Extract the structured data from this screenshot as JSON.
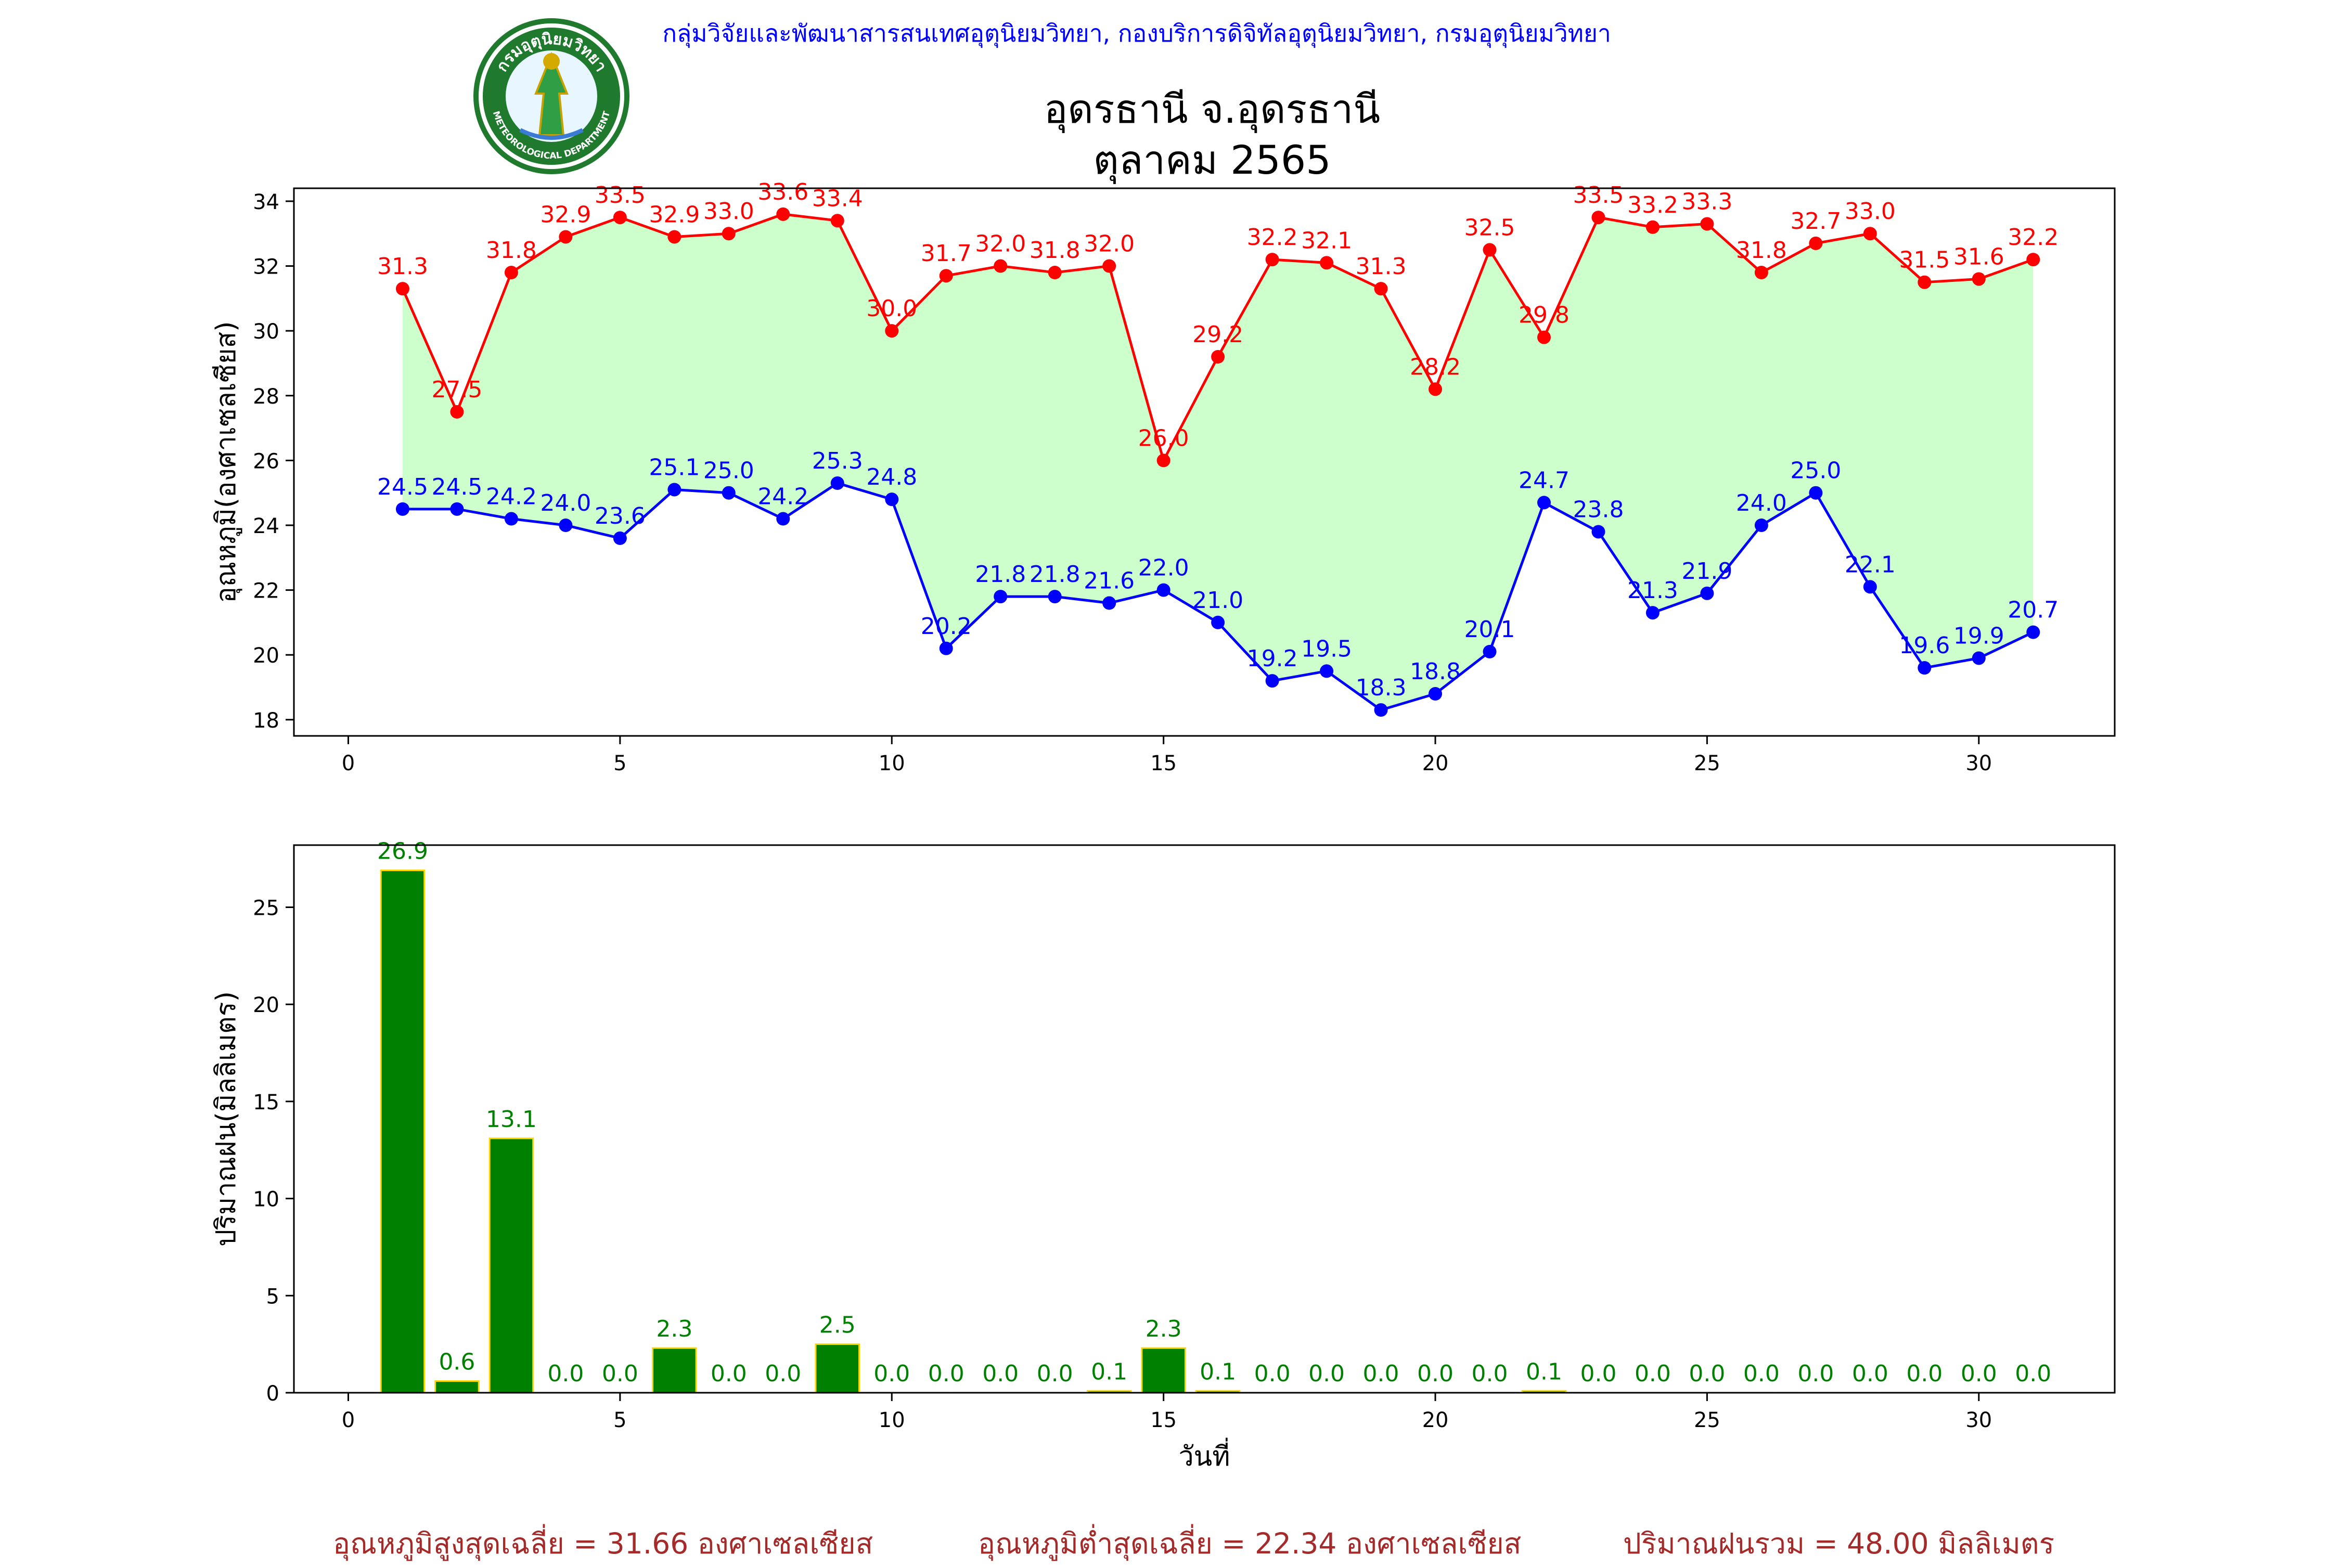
{
  "header": {
    "organization": "กลุ่มวิจัยและพัฒนาสารสนเทศอุตุนิยมวิทยา, กองบริการดิจิทัลอุตุนิยมวิทยา, กรมอุตุนิยมวิทยา",
    "title_line1": "อุดรธานี จ.อุดรธานี",
    "title_line2": "ตุลาคม 2565",
    "logo": {
      "text_top": "กรมอุตุนิยมวิทยา",
      "text_bottom": "METEOROLOGICAL DEPARTMENT",
      "icon": "meteorological-department-seal"
    }
  },
  "chart_data": [
    {
      "type": "line",
      "ylabel": "อุณหภูมิ(องศาเซลเซียส)",
      "xlabel": "",
      "xlim": [
        -1,
        32.5
      ],
      "ylim": [
        17.5,
        34.4
      ],
      "xticks": [
        0,
        5,
        10,
        15,
        20,
        25,
        30
      ],
      "yticks": [
        18,
        20,
        22,
        24,
        26,
        28,
        30,
        32,
        34
      ],
      "x": [
        1,
        2,
        3,
        4,
        5,
        6,
        7,
        8,
        9,
        10,
        11,
        12,
        13,
        14,
        15,
        16,
        17,
        18,
        19,
        20,
        21,
        22,
        23,
        24,
        25,
        26,
        27,
        28,
        29,
        30,
        31
      ],
      "fill_between": {
        "color": "#ccffcc",
        "between": [
          "max",
          "min"
        ]
      },
      "series": [
        {
          "key": "max",
          "color": "#ff0000",
          "values": [
            31.3,
            27.5,
            31.8,
            32.9,
            33.5,
            32.9,
            33.0,
            33.6,
            33.4,
            30.0,
            31.7,
            32.0,
            31.8,
            32.0,
            26.0,
            29.2,
            32.2,
            32.1,
            31.3,
            28.2,
            32.5,
            29.8,
            33.5,
            33.2,
            33.3,
            31.8,
            32.7,
            33.0,
            31.5,
            31.6,
            32.2
          ],
          "labels": [
            "31.3",
            "27.5",
            "31.8",
            "32.9",
            "33.5",
            "32.9",
            "33.0",
            "33.6",
            "33.4",
            "30.0",
            "31.7",
            "32.0",
            "31.8",
            "32.0",
            "26.0",
            "29.2",
            "32.2",
            "32.1",
            "31.3",
            "28.2",
            "32.5",
            "29.8",
            "33.5",
            "33.2",
            "33.3",
            "31.8",
            "32.7",
            "33.0",
            "31.5",
            "31.6",
            "32.2"
          ]
        },
        {
          "key": "min",
          "color": "#0000ff",
          "values": [
            24.5,
            24.5,
            24.2,
            24.0,
            23.6,
            25.1,
            25.0,
            24.2,
            25.3,
            24.8,
            20.2,
            21.8,
            21.8,
            21.6,
            22.0,
            21.0,
            19.2,
            19.5,
            18.3,
            18.8,
            20.1,
            24.7,
            23.8,
            21.3,
            21.9,
            24.0,
            25.0,
            22.1,
            19.6,
            19.9,
            20.7
          ],
          "labels": [
            "24.5",
            "24.5",
            "24.2",
            "24.0",
            "23.6",
            "25.1",
            "25.0",
            "24.2",
            "25.3",
            "24.8",
            "20.2",
            "21.8",
            "21.8",
            "21.6",
            "22.0",
            "21.0",
            "19.2",
            "19.5",
            "18.3",
            "18.8",
            "20.1",
            "24.7",
            "23.8",
            "21.3",
            "21.9",
            "24.0",
            "25.0",
            "22.1",
            "19.6",
            "19.9",
            "20.7"
          ]
        }
      ]
    },
    {
      "type": "bar",
      "ylabel": "ปริมาณฝน(มิลลิเมตร)",
      "xlabel": "วันที่",
      "xlim": [
        -1,
        32.5
      ],
      "ylim": [
        0,
        28.2
      ],
      "xticks": [
        0,
        5,
        10,
        15,
        20,
        25,
        30
      ],
      "yticks": [
        0,
        5,
        10,
        15,
        20,
        25
      ],
      "bar_color": "#008000",
      "bar_edge_color": "#ffd700",
      "label_color": "#008000",
      "x": [
        1,
        2,
        3,
        4,
        5,
        6,
        7,
        8,
        9,
        10,
        11,
        12,
        13,
        14,
        15,
        16,
        17,
        18,
        19,
        20,
        21,
        22,
        23,
        24,
        25,
        26,
        27,
        28,
        29,
        30,
        31
      ],
      "values": [
        26.9,
        0.6,
        13.1,
        0.0,
        0.0,
        2.3,
        0.0,
        0.0,
        2.5,
        0.0,
        0.0,
        0.0,
        0.0,
        0.1,
        2.3,
        0.1,
        0.0,
        0.0,
        0.0,
        0.0,
        0.0,
        0.1,
        0.0,
        0.0,
        0.0,
        0.0,
        0.0,
        0.0,
        0.0,
        0.0,
        0.0
      ],
      "labels": [
        "26.9",
        "0.6",
        "13.1",
        "0.0",
        "0.0",
        "2.3",
        "0.0",
        "0.0",
        "2.5",
        "0.0",
        "0.0",
        "0.0",
        "0.0",
        "0.1",
        "2.3",
        "0.1",
        "0.0",
        "0.0",
        "0.0",
        "0.0",
        "0.0",
        "0.1",
        "0.0",
        "0.0",
        "0.0",
        "0.0",
        "0.0",
        "0.0",
        "0.0",
        "0.0",
        "0.0"
      ]
    }
  ],
  "summary": {
    "avg_max": "อุณหภูมิสูงสุดเฉลี่ย = 31.66 องศาเซลเซียส",
    "avg_min": "อุณหภูมิต่ำสุดเฉลี่ย = 22.34 องศาเซลเซียส",
    "total_rain": "ปริมาณฝนรวม = 48.00 มิลลิเมตร"
  }
}
